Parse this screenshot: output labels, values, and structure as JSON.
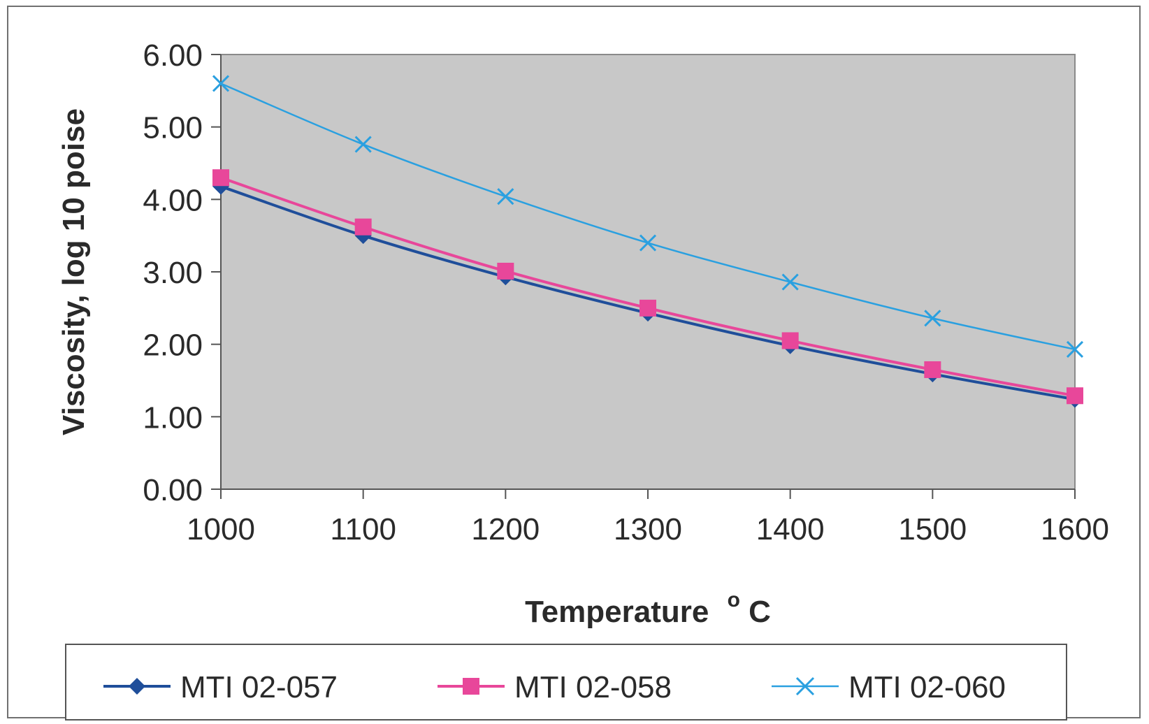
{
  "chart_data": {
    "type": "line",
    "title": "",
    "xlabel": "Temperature",
    "xlabel_unit": "C",
    "xlabel_unit_superscript": "o",
    "ylabel": "Viscosity, log 10 poise",
    "x": [
      1000,
      1100,
      1200,
      1300,
      1400,
      1500,
      1600
    ],
    "xlim": [
      1000,
      1600
    ],
    "ylim": [
      0,
      6
    ],
    "x_ticks": [
      "1000",
      "1100",
      "1200",
      "1300",
      "1400",
      "1500",
      "1600"
    ],
    "y_ticks": [
      "0.00",
      "1.00",
      "2.00",
      "3.00",
      "4.00",
      "5.00",
      "6.00"
    ],
    "grid": false,
    "plot_background": "#c8c8c8",
    "legend_position": "bottom",
    "series": [
      {
        "name": "MTI 02-057",
        "marker": "diamond",
        "color": "#1f4e9a",
        "values": [
          4.18,
          3.5,
          2.93,
          2.43,
          1.98,
          1.59,
          1.24
        ]
      },
      {
        "name": "MTI 02-058",
        "marker": "square",
        "color": "#e8479a",
        "values": [
          4.3,
          3.62,
          3.01,
          2.5,
          2.05,
          1.65,
          1.29
        ]
      },
      {
        "name": "MTI 02-060",
        "marker": "x",
        "color": "#2aa0e0",
        "values": [
          5.6,
          4.76,
          4.04,
          3.4,
          2.86,
          2.36,
          1.93
        ]
      }
    ]
  }
}
